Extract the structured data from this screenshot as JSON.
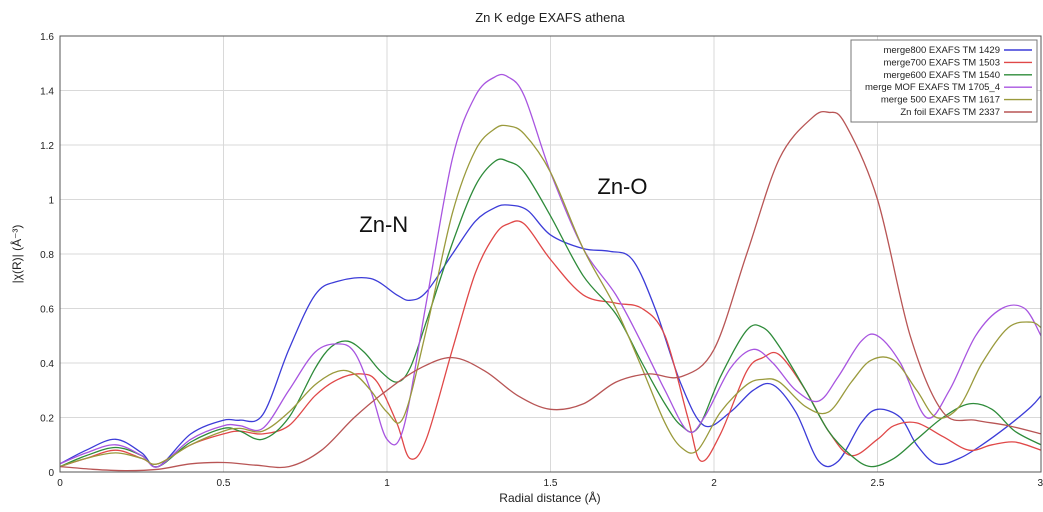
{
  "chart_data": {
    "type": "line",
    "title": "Zn K edge EXAFS athena",
    "xlabel": "Radial distance   (Å)",
    "ylabel": "|χ(R)|   (Å⁻³)",
    "xlim": [
      0,
      3
    ],
    "ylim": [
      0,
      1.6
    ],
    "xticks": [
      "0",
      "0.5",
      "1",
      "1.5",
      "2",
      "2.5",
      "3"
    ],
    "yticks": [
      "0",
      "0.2",
      "0.4",
      "0.6",
      "0.8",
      "1",
      "1.2",
      "1.4",
      "1.6"
    ],
    "grid": true,
    "legend_position": "top-right",
    "annotations": [
      {
        "text": "Zn-N",
        "x": 0.99,
        "y": 0.88
      },
      {
        "text": "Zn-O",
        "x": 1.72,
        "y": 1.02
      }
    ],
    "series": [
      {
        "name": "merge800 EXAFS TM 1429",
        "color": "#3c3cd8",
        "x": [
          0,
          0.08,
          0.17,
          0.25,
          0.3,
          0.4,
          0.5,
          0.55,
          0.62,
          0.7,
          0.78,
          0.85,
          0.95,
          1.03,
          1.07,
          1.12,
          1.2,
          1.27,
          1.33,
          1.37,
          1.43,
          1.5,
          1.6,
          1.68,
          1.75,
          1.82,
          1.9,
          1.97,
          2.05,
          2.12,
          2.18,
          2.25,
          2.32,
          2.38,
          2.45,
          2.5,
          2.57,
          2.62,
          2.68,
          2.75,
          2.82,
          2.9,
          2.97,
          3
        ],
        "y": [
          0.03,
          0.08,
          0.12,
          0.07,
          0.02,
          0.14,
          0.19,
          0.19,
          0.21,
          0.45,
          0.65,
          0.7,
          0.71,
          0.65,
          0.63,
          0.66,
          0.8,
          0.92,
          0.97,
          0.98,
          0.96,
          0.87,
          0.82,
          0.81,
          0.78,
          0.6,
          0.32,
          0.17,
          0.22,
          0.3,
          0.32,
          0.22,
          0.04,
          0.04,
          0.18,
          0.23,
          0.2,
          0.1,
          0.03,
          0.05,
          0.1,
          0.17,
          0.24,
          0.28
        ]
      },
      {
        "name": "merge700 EXAFS TM 1503",
        "color": "#e04848",
        "x": [
          0,
          0.08,
          0.17,
          0.25,
          0.3,
          0.4,
          0.5,
          0.55,
          0.62,
          0.7,
          0.78,
          0.85,
          0.92,
          0.97,
          1.03,
          1.07,
          1.12,
          1.2,
          1.27,
          1.33,
          1.37,
          1.42,
          1.5,
          1.6,
          1.7,
          1.78,
          1.85,
          1.92,
          1.96,
          2.02,
          2.1,
          2.15,
          2.2,
          2.28,
          2.35,
          2.42,
          2.5,
          2.55,
          2.62,
          2.7,
          2.78,
          2.85,
          2.92,
          3
        ],
        "y": [
          0.02,
          0.05,
          0.08,
          0.05,
          0.03,
          0.1,
          0.14,
          0.15,
          0.14,
          0.17,
          0.28,
          0.34,
          0.36,
          0.33,
          0.18,
          0.05,
          0.12,
          0.45,
          0.73,
          0.87,
          0.91,
          0.91,
          0.78,
          0.65,
          0.62,
          0.6,
          0.5,
          0.2,
          0.04,
          0.14,
          0.37,
          0.42,
          0.43,
          0.3,
          0.15,
          0.06,
          0.12,
          0.17,
          0.18,
          0.13,
          0.08,
          0.1,
          0.11,
          0.08
        ]
      },
      {
        "name": "merge600 EXAFS TM 1540",
        "color": "#2e8b3a",
        "x": [
          0,
          0.08,
          0.17,
          0.25,
          0.3,
          0.4,
          0.5,
          0.55,
          0.62,
          0.7,
          0.78,
          0.83,
          0.88,
          0.93,
          0.98,
          1.03,
          1.07,
          1.12,
          1.2,
          1.27,
          1.33,
          1.37,
          1.42,
          1.5,
          1.6,
          1.7,
          1.78,
          1.85,
          1.9,
          1.95,
          2.02,
          2.1,
          2.15,
          2.2,
          2.28,
          2.35,
          2.42,
          2.48,
          2.55,
          2.62,
          2.7,
          2.78,
          2.85,
          2.92,
          3
        ],
        "y": [
          0.02,
          0.06,
          0.09,
          0.06,
          0.02,
          0.11,
          0.16,
          0.15,
          0.12,
          0.2,
          0.38,
          0.46,
          0.48,
          0.44,
          0.37,
          0.33,
          0.38,
          0.55,
          0.84,
          1.05,
          1.14,
          1.14,
          1.1,
          0.94,
          0.72,
          0.58,
          0.4,
          0.25,
          0.17,
          0.16,
          0.35,
          0.52,
          0.53,
          0.46,
          0.3,
          0.15,
          0.06,
          0.02,
          0.05,
          0.12,
          0.2,
          0.25,
          0.23,
          0.15,
          0.1
        ]
      },
      {
        "name": "merge MOF EXAFS TM 1705_4",
        "color": "#a855e0",
        "x": [
          0,
          0.08,
          0.17,
          0.25,
          0.3,
          0.4,
          0.5,
          0.55,
          0.62,
          0.7,
          0.78,
          0.85,
          0.9,
          0.95,
          1.0,
          1.05,
          1.12,
          1.2,
          1.27,
          1.33,
          1.37,
          1.42,
          1.5,
          1.6,
          1.7,
          1.78,
          1.85,
          1.92,
          1.97,
          2.05,
          2.12,
          2.18,
          2.25,
          2.32,
          2.38,
          2.45,
          2.5,
          2.57,
          2.65,
          2.72,
          2.8,
          2.88,
          2.95,
          3
        ],
        "y": [
          0.03,
          0.07,
          0.1,
          0.06,
          0.02,
          0.12,
          0.17,
          0.17,
          0.16,
          0.3,
          0.44,
          0.47,
          0.44,
          0.3,
          0.12,
          0.16,
          0.62,
          1.15,
          1.38,
          1.45,
          1.45,
          1.38,
          1.1,
          0.82,
          0.65,
          0.47,
          0.3,
          0.15,
          0.2,
          0.38,
          0.45,
          0.4,
          0.3,
          0.26,
          0.35,
          0.48,
          0.5,
          0.4,
          0.2,
          0.3,
          0.5,
          0.6,
          0.6,
          0.5
        ]
      },
      {
        "name": "merge 500 EXAFS TM 1617",
        "color": "#9a9a3c",
        "x": [
          0,
          0.08,
          0.17,
          0.25,
          0.3,
          0.4,
          0.5,
          0.55,
          0.62,
          0.7,
          0.78,
          0.85,
          0.9,
          0.95,
          1.0,
          1.05,
          1.12,
          1.2,
          1.27,
          1.33,
          1.37,
          1.42,
          1.5,
          1.6,
          1.7,
          1.78,
          1.85,
          1.9,
          1.95,
          2.02,
          2.1,
          2.15,
          2.2,
          2.28,
          2.35,
          2.42,
          2.48,
          2.55,
          2.62,
          2.68,
          2.75,
          2.82,
          2.9,
          2.97,
          3
        ],
        "y": [
          0.02,
          0.05,
          0.07,
          0.05,
          0.03,
          0.1,
          0.15,
          0.16,
          0.15,
          0.22,
          0.32,
          0.37,
          0.36,
          0.3,
          0.22,
          0.2,
          0.52,
          0.95,
          1.18,
          1.26,
          1.27,
          1.24,
          1.1,
          0.82,
          0.6,
          0.38,
          0.18,
          0.09,
          0.08,
          0.22,
          0.32,
          0.34,
          0.33,
          0.24,
          0.22,
          0.33,
          0.41,
          0.41,
          0.3,
          0.2,
          0.24,
          0.4,
          0.53,
          0.55,
          0.53
        ]
      },
      {
        "name": "Zn foil EXAFS TM 2337",
        "color": "#b85555",
        "x": [
          0,
          0.1,
          0.2,
          0.3,
          0.4,
          0.5,
          0.6,
          0.7,
          0.8,
          0.9,
          1.0,
          1.1,
          1.2,
          1.3,
          1.4,
          1.5,
          1.6,
          1.7,
          1.8,
          1.9,
          2.0,
          2.1,
          2.2,
          2.3,
          2.35,
          2.4,
          2.5,
          2.6,
          2.7,
          2.8,
          2.9,
          3
        ],
        "y": [
          0.02,
          0.01,
          0.005,
          0.01,
          0.03,
          0.035,
          0.025,
          0.02,
          0.08,
          0.2,
          0.3,
          0.38,
          0.42,
          0.37,
          0.28,
          0.23,
          0.25,
          0.33,
          0.36,
          0.35,
          0.45,
          0.8,
          1.15,
          1.3,
          1.32,
          1.28,
          1.0,
          0.5,
          0.22,
          0.19,
          0.17,
          0.14
        ]
      }
    ]
  }
}
